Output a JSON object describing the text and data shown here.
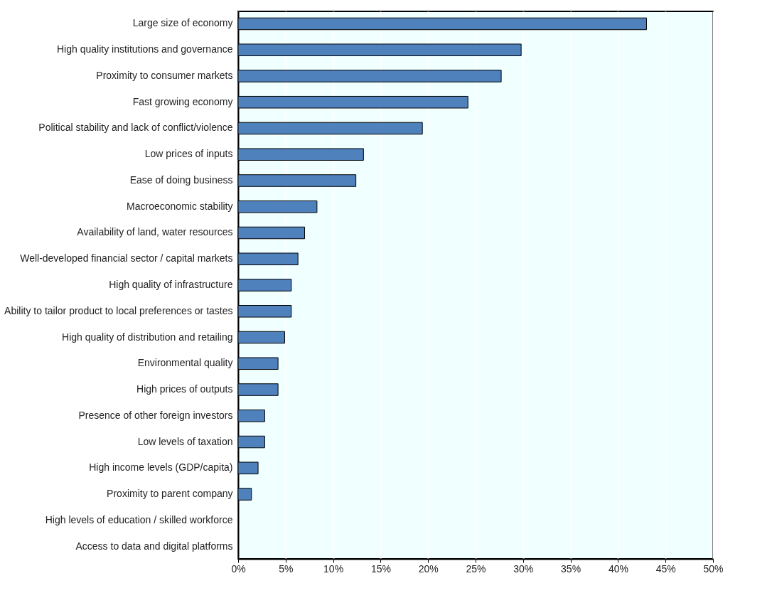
{
  "chart_data": {
    "type": "bar",
    "orientation": "horizontal",
    "categories": [
      "Large size of economy",
      "High quality institutions and governance",
      "Proximity to consumer markets",
      "Fast growing economy",
      "Political stability and lack of conflict/violence",
      "Low prices of inputs",
      "Ease of doing business",
      "Macroeconomic stability",
      "Availability of land, water resources",
      "Well-developed financial sector / capital markets",
      "High quality of infrastructure",
      "Ability to tailor product to local preferences or tastes",
      "High quality of distribution and retailing",
      "Environmental quality",
      "High prices of outputs",
      "Presence of other foreign investors",
      "Low levels of taxation",
      "High income levels (GDP/capita)",
      "Proximity to parent company",
      "High levels of education / skilled workforce",
      "Access to data and digital platforms"
    ],
    "values": [
      43,
      29.8,
      27.7,
      24.2,
      19.4,
      13.2,
      12.4,
      8.3,
      7.0,
      6.3,
      5.6,
      5.6,
      4.9,
      4.2,
      4.2,
      2.8,
      2.8,
      2.1,
      1.4,
      0,
      0
    ],
    "color": "#4f81bd",
    "xlim": [
      0,
      50
    ],
    "xticks": [
      {
        "value": 0,
        "label": "0%"
      },
      {
        "value": 5,
        "label": "5%"
      },
      {
        "value": 10,
        "label": "10%"
      },
      {
        "value": 15,
        "label": "15%"
      },
      {
        "value": 20,
        "label": "20%"
      },
      {
        "value": 25,
        "label": "25%"
      },
      {
        "value": 30,
        "label": "30%"
      },
      {
        "value": 35,
        "label": "35%"
      },
      {
        "value": 40,
        "label": "40%"
      },
      {
        "value": 45,
        "label": "45%"
      },
      {
        "value": 50,
        "label": "50%"
      }
    ],
    "grid": "x"
  }
}
